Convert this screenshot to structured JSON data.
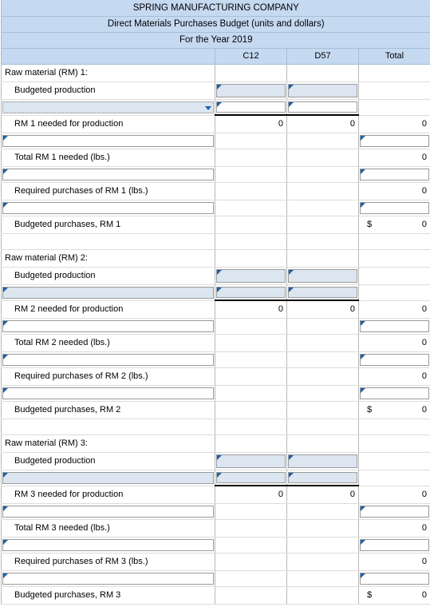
{
  "header": {
    "company": "SPRING MANUFACTURING COMPANY",
    "title": "Direct Materials Purchases Budget (units and dollars)",
    "period": "For the Year 2019"
  },
  "columns": [
    "C12",
    "D57",
    "Total"
  ],
  "sections": [
    {
      "title": "Raw material (RM) 1:",
      "budgeted_production": "Budgeted production",
      "needed": "RM 1 needed for production",
      "total": "Total RM 1 needed (lbs.)",
      "required": "Required purchases of RM 1 (lbs.)",
      "purchases": "Budgeted purchases, RM 1",
      "needed_values": [
        "0",
        "0",
        "0"
      ],
      "total_value": "0",
      "required_value": "0",
      "purchases_value": "0"
    },
    {
      "title": "Raw material (RM) 2:",
      "budgeted_production": "Budgeted production",
      "needed": "RM 2 needed for production",
      "total": "Total RM 2 needed (lbs.)",
      "required": "Required purchases of RM 2 (lbs.)",
      "purchases": "Budgeted purchases, RM 2",
      "needed_values": [
        "0",
        "0",
        "0"
      ],
      "total_value": "0",
      "required_value": "0",
      "purchases_value": "0"
    },
    {
      "title": "Raw material (RM) 3:",
      "budgeted_production": "Budgeted production",
      "needed": "RM 3 needed for production",
      "total": "Total RM 3 needed (lbs.)",
      "required": "Required purchases of RM 3 (lbs.)",
      "purchases": "Budgeted purchases, RM 3",
      "needed_values": [
        "0",
        "0",
        "0"
      ],
      "total_value": "0",
      "required_value": "0",
      "purchases_value": "0"
    }
  ],
  "currency_symbol": "$"
}
